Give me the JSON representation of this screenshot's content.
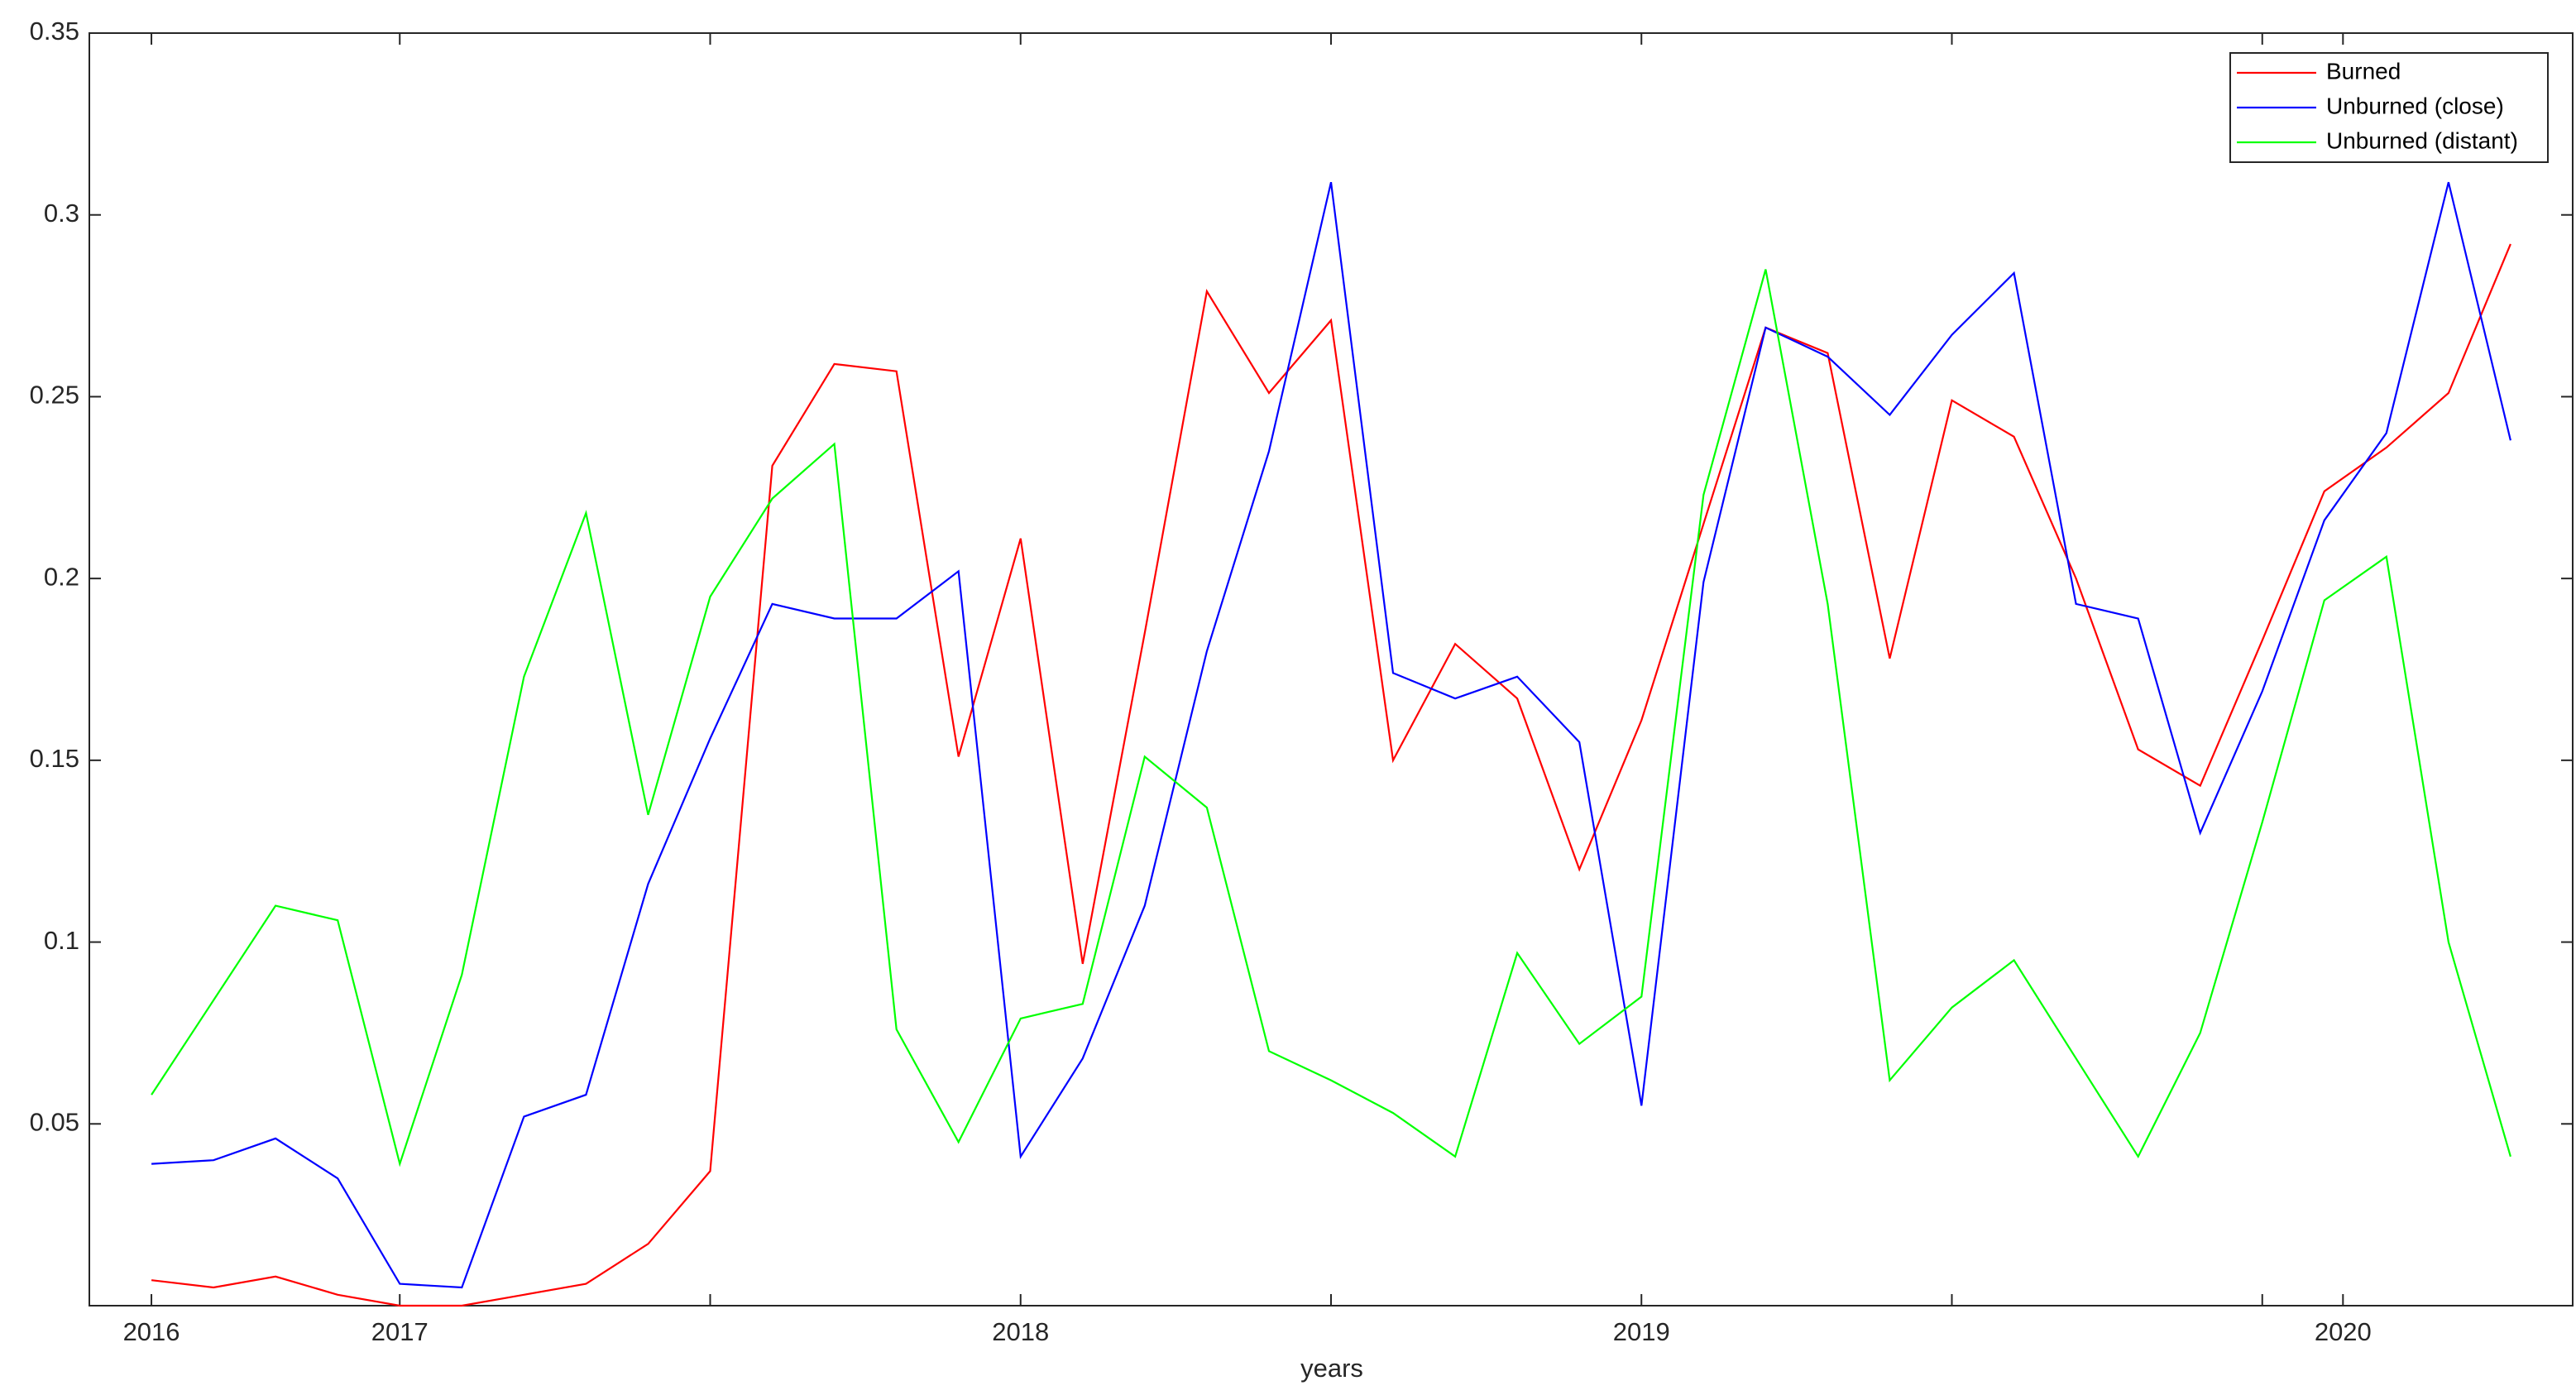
{
  "chart_data": {
    "type": "line",
    "x_label": "years",
    "x": [
      1,
      2,
      3,
      4,
      5,
      6,
      7,
      8,
      9,
      10,
      11,
      12,
      13,
      14,
      15,
      16,
      17,
      18,
      19,
      20,
      21,
      22,
      23,
      24,
      25,
      26,
      27,
      28,
      29,
      30,
      31,
      32,
      33,
      34,
      35,
      36,
      37,
      38,
      39
    ],
    "xlim": [
      0,
      40
    ],
    "xticks": [
      {
        "value": 1,
        "label": "2016"
      },
      {
        "value": 5,
        "label": "2017"
      },
      {
        "value": 10,
        "label": null
      },
      {
        "value": 15,
        "label": "2018"
      },
      {
        "value": 20,
        "label": null
      },
      {
        "value": 25,
        "label": "2019"
      },
      {
        "value": 30,
        "label": null
      },
      {
        "value": 35,
        "label": null
      },
      {
        "value": 36.3,
        "label": "2020"
      }
    ],
    "ylim": [
      0,
      0.35
    ],
    "yticks": [
      0.05,
      0.1,
      0.15,
      0.2,
      0.25,
      0.3,
      0.35
    ],
    "grid": false,
    "legend_position": "upper-right",
    "series": [
      {
        "name": "Burned",
        "color": "#ff0000",
        "values": [
          0.007,
          0.005,
          0.008,
          0.003,
          0.0,
          0.0,
          0.003,
          0.006,
          0.017,
          0.037,
          0.231,
          0.259,
          0.257,
          0.151,
          0.211,
          0.094,
          0.185,
          0.279,
          0.251,
          0.271,
          0.15,
          0.182,
          0.167,
          0.12,
          0.161,
          0.215,
          0.269,
          0.262,
          0.178,
          0.249,
          0.239,
          0.2,
          0.153,
          0.143,
          0.183,
          0.224,
          0.236,
          0.251,
          0.292
        ]
      },
      {
        "name": "Unburned (close)",
        "color": "#0000ff",
        "values": [
          0.039,
          0.04,
          0.046,
          0.035,
          0.006,
          0.005,
          0.052,
          0.058,
          0.116,
          0.156,
          0.193,
          0.189,
          0.189,
          0.202,
          0.041,
          0.068,
          0.11,
          0.18,
          0.235,
          0.309,
          0.174,
          0.167,
          0.173,
          0.155,
          0.055,
          0.199,
          0.269,
          0.261,
          0.245,
          0.267,
          0.284,
          0.193,
          0.189,
          0.13,
          0.169,
          0.216,
          0.24,
          0.309,
          0.238
        ]
      },
      {
        "name": "Unburned (distant)",
        "color": "#00ff00",
        "values": [
          0.058,
          0.084,
          0.11,
          0.106,
          0.039,
          0.091,
          0.173,
          0.218,
          0.135,
          0.195,
          0.222,
          0.237,
          0.076,
          0.045,
          0.079,
          0.083,
          0.151,
          0.137,
          0.07,
          0.062,
          0.053,
          0.041,
          0.097,
          0.072,
          0.085,
          0.223,
          0.285,
          0.193,
          0.062,
          0.082,
          0.095,
          0.068,
          0.041,
          0.075,
          0.133,
          0.194,
          0.206,
          0.1,
          0.041
        ]
      }
    ]
  }
}
